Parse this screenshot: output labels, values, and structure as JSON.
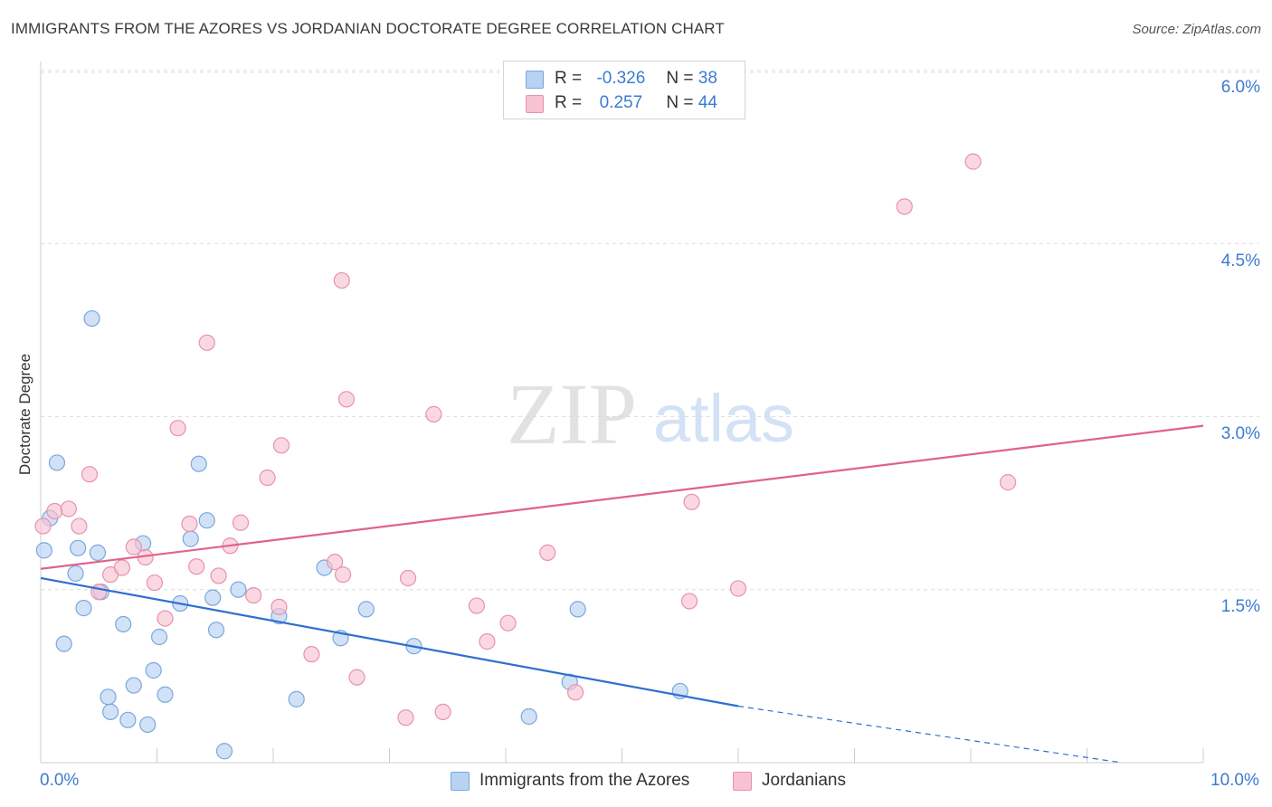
{
  "title": "IMMIGRANTS FROM THE AZORES VS JORDANIAN DOCTORATE DEGREE CORRELATION CHART",
  "source": "Source: ZipAtlas.com",
  "watermark": {
    "zip": "ZIP",
    "atlas": "atlas"
  },
  "colors": {
    "blue_fill": "#b8d2f2",
    "blue_stroke": "#7aa7de",
    "blue_line": "#2f6fcf",
    "pink_fill": "#f7c3d3",
    "pink_stroke": "#e892ad",
    "pink_line": "#e0628b",
    "tick_text": "#3d7bd1",
    "grid": "#dcdcdc"
  },
  "legend": {
    "rows": [
      {
        "r_label": "R = ",
        "r_value": "-0.326",
        "n_label": "N = ",
        "n_value": "38"
      },
      {
        "r_label": "R = ",
        "r_value": "0.257",
        "n_label": "N = ",
        "n_value": "44"
      }
    ]
  },
  "chart_data": {
    "type": "scatter",
    "title": "IMMIGRANTS FROM THE AZORES VS JORDANIAN DOCTORATE DEGREE CORRELATION CHART",
    "xlabel": "",
    "ylabel": "Doctorate Degree",
    "xlim": [
      0,
      10
    ],
    "ylim": [
      0,
      6.2
    ],
    "x_tick_labels": [
      "0.0%",
      "10.0%"
    ],
    "y_ticks": [
      1.5,
      3.0,
      4.5,
      6.0
    ],
    "y_tick_labels": [
      "1.5%",
      "3.0%",
      "4.5%",
      "6.0%"
    ],
    "grid": true,
    "legend_position": "top-center",
    "series": [
      {
        "name": "Immigrants from the Azores",
        "r": -0.326,
        "n": 38,
        "trend": {
          "x": [
            0,
            6.0
          ],
          "y": [
            1.6,
            0.49
          ],
          "dashed_to": [
            9.3,
            0.0
          ]
        },
        "points": [
          [
            0.08,
            2.12
          ],
          [
            0.14,
            2.6
          ],
          [
            0.03,
            1.84
          ],
          [
            0.3,
            1.64
          ],
          [
            0.32,
            1.86
          ],
          [
            0.2,
            1.03
          ],
          [
            0.37,
            1.34
          ],
          [
            0.44,
            3.85
          ],
          [
            0.49,
            1.82
          ],
          [
            0.52,
            1.48
          ],
          [
            0.58,
            0.57
          ],
          [
            0.6,
            0.44
          ],
          [
            0.71,
            1.2
          ],
          [
            0.75,
            0.37
          ],
          [
            0.8,
            0.67
          ],
          [
            0.88,
            1.9
          ],
          [
            0.92,
            0.33
          ],
          [
            0.97,
            0.8
          ],
          [
            1.02,
            1.09
          ],
          [
            1.07,
            0.59
          ],
          [
            1.2,
            1.38
          ],
          [
            1.29,
            1.94
          ],
          [
            1.36,
            2.59
          ],
          [
            1.43,
            2.1
          ],
          [
            1.48,
            1.43
          ],
          [
            1.51,
            1.15
          ],
          [
            1.58,
            0.1
          ],
          [
            1.7,
            1.5
          ],
          [
            2.05,
            1.27
          ],
          [
            2.2,
            0.55
          ],
          [
            2.44,
            1.69
          ],
          [
            2.58,
            1.08
          ],
          [
            2.8,
            1.33
          ],
          [
            3.21,
            1.01
          ],
          [
            4.2,
            0.4
          ],
          [
            4.55,
            0.7
          ],
          [
            4.62,
            1.33
          ],
          [
            5.5,
            0.62
          ]
        ]
      },
      {
        "name": "Jordanians",
        "r": 0.257,
        "n": 44,
        "trend": {
          "x": [
            0,
            10.0
          ],
          "y": [
            1.68,
            2.92
          ]
        },
        "points": [
          [
            0.02,
            2.05
          ],
          [
            0.12,
            2.18
          ],
          [
            0.24,
            2.2
          ],
          [
            0.33,
            2.05
          ],
          [
            0.42,
            2.5
          ],
          [
            0.5,
            1.48
          ],
          [
            0.6,
            1.63
          ],
          [
            0.7,
            1.69
          ],
          [
            0.8,
            1.87
          ],
          [
            0.9,
            1.78
          ],
          [
            0.98,
            1.56
          ],
          [
            1.07,
            1.25
          ],
          [
            1.18,
            2.9
          ],
          [
            1.28,
            2.07
          ],
          [
            1.34,
            1.7
          ],
          [
            1.43,
            3.64
          ],
          [
            1.53,
            1.62
          ],
          [
            1.63,
            1.88
          ],
          [
            1.72,
            2.08
          ],
          [
            1.83,
            1.45
          ],
          [
            1.95,
            2.47
          ],
          [
            2.05,
            1.35
          ],
          [
            2.07,
            2.75
          ],
          [
            2.33,
            0.94
          ],
          [
            2.53,
            1.74
          ],
          [
            2.6,
            1.63
          ],
          [
            2.59,
            4.18
          ],
          [
            2.63,
            3.15
          ],
          [
            2.72,
            0.74
          ],
          [
            3.14,
            0.39
          ],
          [
            3.16,
            1.6
          ],
          [
            3.38,
            3.02
          ],
          [
            3.46,
            0.44
          ],
          [
            3.75,
            1.36
          ],
          [
            3.84,
            1.05
          ],
          [
            4.02,
            1.21
          ],
          [
            4.36,
            1.82
          ],
          [
            4.6,
            0.61
          ],
          [
            5.58,
            1.4
          ],
          [
            5.6,
            2.26
          ],
          [
            6.0,
            1.51
          ],
          [
            7.43,
            4.82
          ],
          [
            8.02,
            5.21
          ],
          [
            8.32,
            2.43
          ]
        ]
      }
    ]
  }
}
